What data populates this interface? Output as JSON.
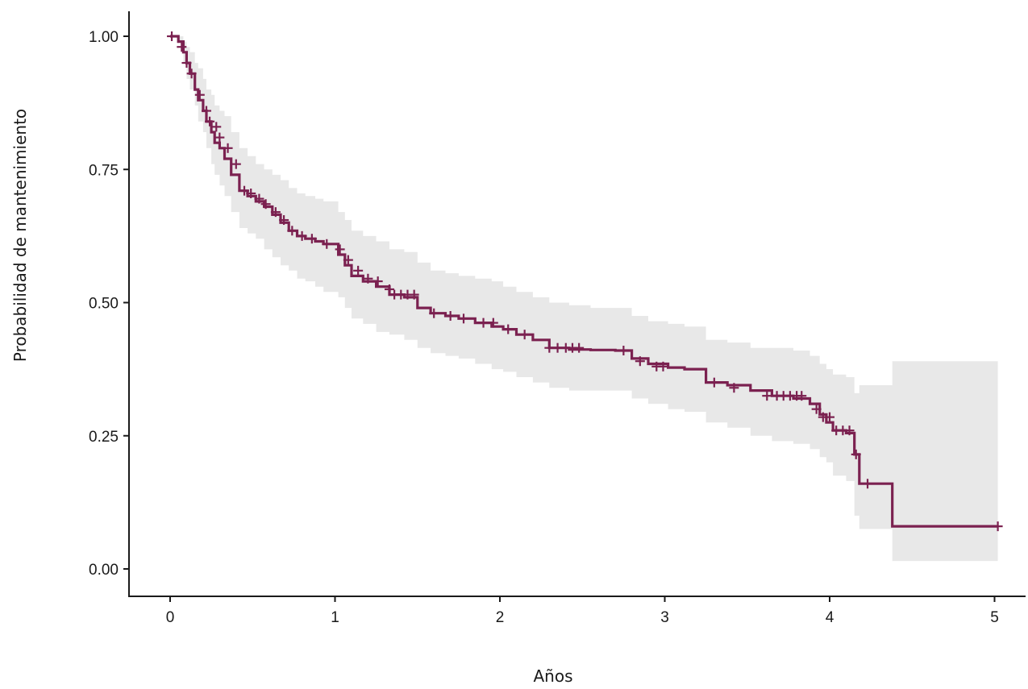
{
  "chart_data": {
    "type": "line",
    "subtype": "kaplan-meier-step",
    "title": "",
    "xlabel": "Años",
    "ylabel": "Probabilidad de mantenimiento",
    "xlim": [
      0,
      5
    ],
    "ylim": [
      0,
      1
    ],
    "xticks": [
      "0",
      "1",
      "2",
      "3",
      "4",
      "5"
    ],
    "yticks": [
      "0.00",
      "0.25",
      "0.50",
      "0.75",
      "1.00"
    ],
    "grid": false,
    "legend": "none",
    "colors": {
      "line": "#7b2150",
      "band": "#e8e8e8",
      "axis": "#1a1a1a"
    },
    "series": [
      {
        "x": [
          0,
          0.05,
          0.08,
          0.1,
          0.12,
          0.15,
          0.17,
          0.2,
          0.22,
          0.25,
          0.27,
          0.3,
          0.33,
          0.37,
          0.42,
          0.47,
          0.52,
          0.57,
          0.62,
          0.67,
          0.72,
          0.77,
          0.82,
          0.88,
          0.93,
          1.02,
          1.06,
          1.1,
          1.17,
          1.25,
          1.33,
          1.42,
          1.5,
          1.58,
          1.67,
          1.75,
          1.85,
          1.95,
          2.02,
          2.1,
          2.2,
          2.3,
          2.42,
          2.55,
          2.7,
          2.8,
          2.9,
          3.02,
          3.12,
          3.25,
          3.38,
          3.52,
          3.65,
          3.78,
          3.88,
          3.94,
          3.98,
          4.02,
          4.1,
          4.15,
          4.18,
          4.38,
          5.02
        ],
        "y": [
          1.0,
          0.99,
          0.97,
          0.95,
          0.93,
          0.9,
          0.88,
          0.86,
          0.84,
          0.82,
          0.8,
          0.79,
          0.77,
          0.74,
          0.71,
          0.7,
          0.69,
          0.68,
          0.665,
          0.65,
          0.635,
          0.625,
          0.62,
          0.615,
          0.61,
          0.59,
          0.57,
          0.55,
          0.54,
          0.53,
          0.515,
          0.51,
          0.49,
          0.48,
          0.475,
          0.47,
          0.462,
          0.455,
          0.45,
          0.44,
          0.43,
          0.415,
          0.412,
          0.411,
          0.41,
          0.395,
          0.385,
          0.378,
          0.375,
          0.35,
          0.345,
          0.335,
          0.325,
          0.32,
          0.31,
          0.29,
          0.275,
          0.26,
          0.255,
          0.215,
          0.16,
          0.08,
          0.08
        ],
        "lower": [
          1.0,
          0.99,
          0.95,
          0.92,
          0.9,
          0.87,
          0.84,
          0.82,
          0.79,
          0.76,
          0.74,
          0.72,
          0.7,
          0.67,
          0.64,
          0.63,
          0.62,
          0.6,
          0.585,
          0.57,
          0.56,
          0.545,
          0.54,
          0.53,
          0.52,
          0.51,
          0.49,
          0.47,
          0.46,
          0.445,
          0.44,
          0.43,
          0.415,
          0.405,
          0.4,
          0.395,
          0.385,
          0.375,
          0.37,
          0.36,
          0.35,
          0.34,
          0.335,
          0.335,
          0.335,
          0.32,
          0.31,
          0.3,
          0.295,
          0.275,
          0.265,
          0.25,
          0.24,
          0.235,
          0.225,
          0.21,
          0.2,
          0.175,
          0.165,
          0.1,
          0.075,
          0.015,
          0.015
        ],
        "upper": [
          1.0,
          1.0,
          0.99,
          0.98,
          0.97,
          0.95,
          0.94,
          0.92,
          0.9,
          0.89,
          0.87,
          0.86,
          0.85,
          0.82,
          0.79,
          0.775,
          0.76,
          0.75,
          0.74,
          0.73,
          0.715,
          0.705,
          0.7,
          0.695,
          0.69,
          0.67,
          0.655,
          0.635,
          0.625,
          0.615,
          0.6,
          0.595,
          0.575,
          0.56,
          0.555,
          0.55,
          0.545,
          0.54,
          0.53,
          0.52,
          0.51,
          0.5,
          0.495,
          0.49,
          0.49,
          0.475,
          0.465,
          0.46,
          0.455,
          0.43,
          0.425,
          0.415,
          0.415,
          0.41,
          0.4,
          0.385,
          0.375,
          0.365,
          0.36,
          0.33,
          0.345,
          0.39,
          0.39
        ]
      }
    ],
    "censored": {
      "x": [
        0.01,
        0.07,
        0.1,
        0.13,
        0.18,
        0.22,
        0.24,
        0.28,
        0.3,
        0.35,
        0.4,
        0.45,
        0.49,
        0.54,
        0.58,
        0.64,
        0.69,
        0.74,
        0.8,
        0.86,
        0.95,
        1.03,
        1.08,
        1.14,
        1.2,
        1.26,
        1.33,
        1.36,
        1.4,
        1.44,
        1.48,
        1.6,
        1.7,
        1.78,
        1.9,
        1.96,
        2.05,
        2.15,
        2.3,
        2.35,
        2.4,
        2.44,
        2.48,
        2.75,
        2.85,
        2.95,
        2.99,
        3.3,
        3.42,
        3.62,
        3.68,
        3.72,
        3.76,
        3.8,
        3.83,
        3.92,
        3.96,
        4.0,
        4.04,
        4.08,
        4.12,
        4.16,
        4.23,
        5.02
      ],
      "y": [
        1.0,
        0.98,
        0.95,
        0.93,
        0.89,
        0.86,
        0.84,
        0.83,
        0.81,
        0.79,
        0.76,
        0.71,
        0.705,
        0.695,
        0.685,
        0.67,
        0.655,
        0.635,
        0.625,
        0.62,
        0.61,
        0.6,
        0.58,
        0.56,
        0.545,
        0.54,
        0.525,
        0.515,
        0.515,
        0.515,
        0.515,
        0.48,
        0.475,
        0.47,
        0.462,
        0.462,
        0.45,
        0.44,
        0.415,
        0.415,
        0.415,
        0.415,
        0.415,
        0.41,
        0.39,
        0.38,
        0.38,
        0.35,
        0.34,
        0.325,
        0.325,
        0.325,
        0.325,
        0.325,
        0.325,
        0.3,
        0.285,
        0.285,
        0.26,
        0.26,
        0.26,
        0.215,
        0.16,
        0.08
      ]
    }
  }
}
